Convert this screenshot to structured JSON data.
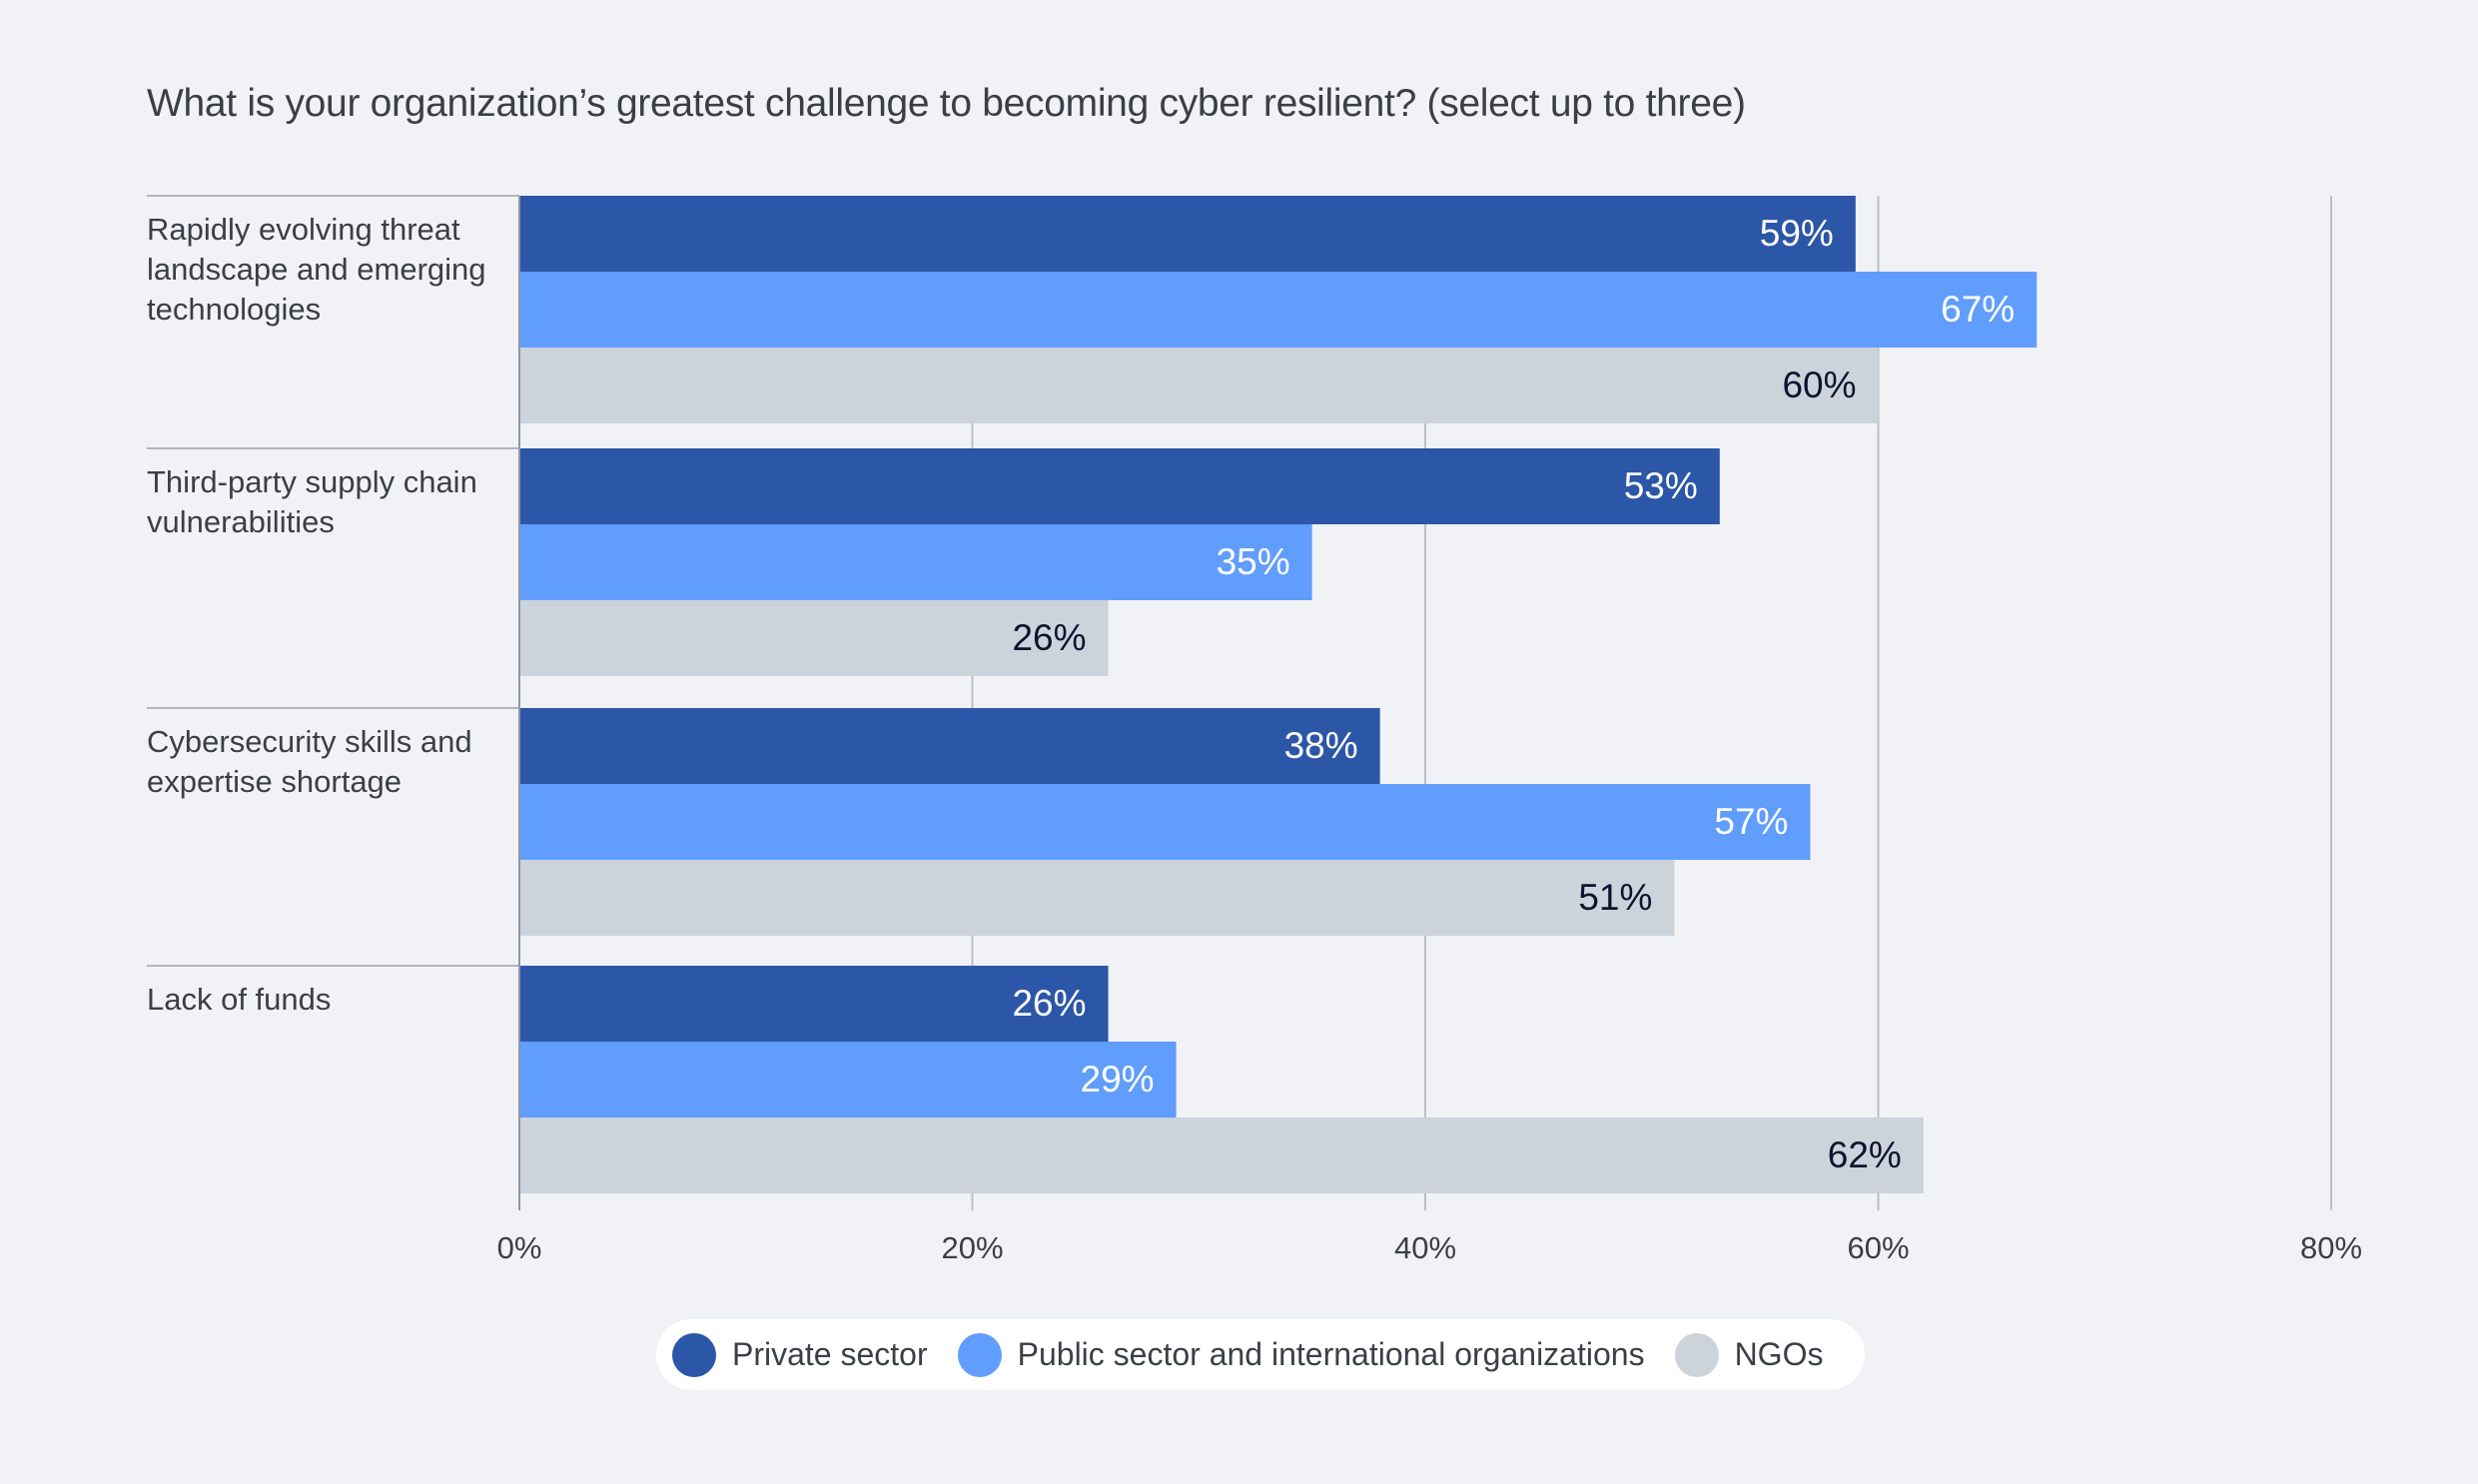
{
  "chart_data": {
    "type": "bar",
    "orientation": "horizontal",
    "title": "What is your organization’s greatest challenge to becoming cyber resilient? (select up to three)",
    "categories": [
      "Rapidly evolving threat landscape and emerging technologies",
      "Third-party supply chain vulnerabilities",
      "Cybersecurity skills and expertise shortage",
      "Lack of funds"
    ],
    "series": [
      {
        "name": "Private sector",
        "color": "#2c56a7",
        "label_color": "#ffffff",
        "values": [
          59,
          53,
          38,
          26
        ]
      },
      {
        "name": "Public sector and international organizations",
        "color": "#619dfd",
        "label_color": "#ffffff",
        "values": [
          67,
          35,
          57,
          29
        ]
      },
      {
        "name": "NGOs",
        "color": "#ccd3da",
        "label_color": "#0b1530",
        "values": [
          60,
          26,
          51,
          62
        ]
      }
    ],
    "xlim": [
      0,
      80
    ],
    "xticks": [
      0,
      20,
      40,
      60,
      80
    ],
    "xtick_labels": [
      "0%",
      "20%",
      "40%",
      "60%",
      "80%"
    ],
    "value_suffix": "%",
    "grid": true,
    "legend_position": "bottom-center"
  }
}
